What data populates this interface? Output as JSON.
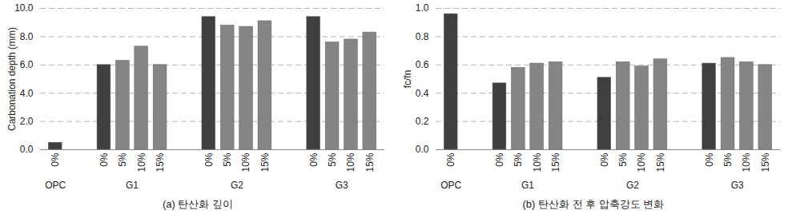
{
  "chart_data": [
    {
      "type": "bar",
      "title": "(a) 탄산화 깊이",
      "ylabel": "Carbonation depth (mm)",
      "groups": [
        {
          "name": "OPC",
          "categories": [
            "0%"
          ],
          "values": [
            0.5
          ],
          "colors": [
            "#3f3f3f"
          ]
        },
        {
          "name": "G1",
          "categories": [
            "0%",
            "5%",
            "10%",
            "15%"
          ],
          "values": [
            6.0,
            6.3,
            7.3,
            6.0
          ],
          "colors": [
            "#3f3f3f",
            "#858585",
            "#858585",
            "#858585"
          ]
        },
        {
          "name": "G2",
          "categories": [
            "0%",
            "5%",
            "10%",
            "15%"
          ],
          "values": [
            9.4,
            8.8,
            8.7,
            9.1
          ],
          "colors": [
            "#3f3f3f",
            "#858585",
            "#858585",
            "#858585"
          ]
        },
        {
          "name": "G3",
          "categories": [
            "0%",
            "5%",
            "10%",
            "15%"
          ],
          "values": [
            9.4,
            7.6,
            7.8,
            8.3
          ],
          "colors": [
            "#3f3f3f",
            "#858585",
            "#858585",
            "#858585"
          ]
        }
      ],
      "ylim": [
        0,
        10
      ],
      "yticks": [
        {
          "value": 0,
          "label": "0.0"
        },
        {
          "value": 2,
          "label": "2.0"
        },
        {
          "value": 4,
          "label": "4.0"
        },
        {
          "value": 6,
          "label": "6.0"
        },
        {
          "value": 8,
          "label": "8.0"
        },
        {
          "value": 10,
          "label": "10.0"
        }
      ],
      "grid": true
    },
    {
      "type": "bar",
      "title": "(b) 탄산화 전 후 압축강도 변화",
      "ylabel": "fc/fn",
      "groups": [
        {
          "name": "OPC",
          "categories": [
            "0%"
          ],
          "values": [
            0.96
          ],
          "colors": [
            "#3f3f3f"
          ]
        },
        {
          "name": "G1",
          "categories": [
            "0%",
            "5%",
            "10%",
            "15%"
          ],
          "values": [
            0.47,
            0.58,
            0.61,
            0.62
          ],
          "colors": [
            "#3f3f3f",
            "#858585",
            "#858585",
            "#858585"
          ]
        },
        {
          "name": "G2",
          "categories": [
            "0%",
            "5%",
            "10%",
            "15%"
          ],
          "values": [
            0.51,
            0.62,
            0.59,
            0.64
          ],
          "colors": [
            "#3f3f3f",
            "#858585",
            "#858585",
            "#858585"
          ]
        },
        {
          "name": "G3",
          "categories": [
            "0%",
            "5%",
            "10%",
            "15%"
          ],
          "values": [
            0.61,
            0.65,
            0.62,
            0.6
          ],
          "colors": [
            "#3f3f3f",
            "#858585",
            "#858585",
            "#858585"
          ]
        }
      ],
      "ylim": [
        0,
        1
      ],
      "yticks": [
        {
          "value": 0,
          "label": "0.0"
        },
        {
          "value": 0.2,
          "label": "0.2"
        },
        {
          "value": 0.4,
          "label": "0.4"
        },
        {
          "value": 0.6,
          "label": "0.6"
        },
        {
          "value": 0.8,
          "label": "0.8"
        },
        {
          "value": 1,
          "label": "1.0"
        }
      ],
      "grid": true
    }
  ]
}
